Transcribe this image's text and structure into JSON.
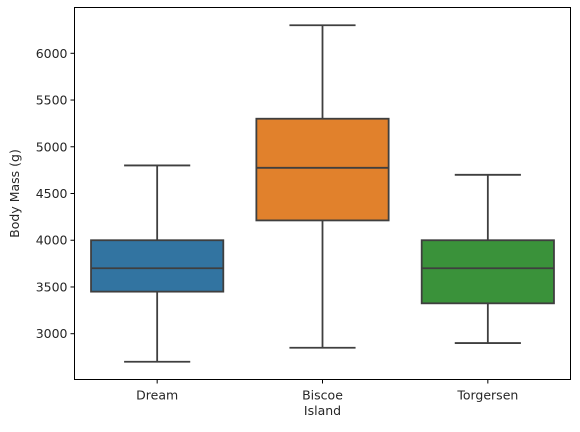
{
  "chart_data": {
    "type": "box",
    "title": "",
    "xlabel": "Island",
    "ylabel": "Body Mass (g)",
    "categories": [
      "Dream",
      "Biscoe",
      "Torgersen"
    ],
    "boxes": [
      {
        "category": "Dream",
        "whisker_low": 2700,
        "q1": 3450,
        "median": 3700,
        "q3": 4000,
        "whisker_high": 4800,
        "color": "#3274a1"
      },
      {
        "category": "Biscoe",
        "whisker_low": 2850,
        "q1": 4212,
        "median": 4775,
        "q3": 5300,
        "whisker_high": 6300,
        "color": "#e1812c"
      },
      {
        "category": "Torgersen",
        "whisker_low": 2900,
        "q1": 3325,
        "median": 3700,
        "q3": 4000,
        "whisker_high": 4700,
        "color": "#3a923a"
      }
    ],
    "yticks": [
      3000,
      3500,
      4000,
      4500,
      5000,
      5500,
      6000
    ],
    "ylim": [
      2510,
      6490
    ],
    "grid": false,
    "line_color": "#3f3f3f"
  }
}
